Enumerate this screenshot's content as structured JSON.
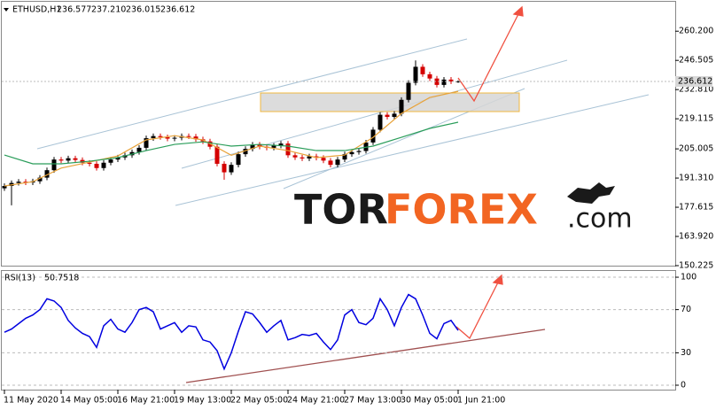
{
  "chart_data": [
    {
      "type": "candlestick",
      "quote": {
        "symbol": "ETHUSD,H1",
        "values": [
          236.577,
          237.21,
          236.015,
          236.612
        ],
        "value_labels": [
          "236.577",
          "237.210",
          "236.015",
          "236.612"
        ]
      },
      "up_color": "#000000",
      "down_color": "#d40000",
      "open": [
        186.5,
        187.6,
        189.0,
        189.6,
        189.2,
        189.8,
        191.5,
        195.0,
        200.0,
        199.5,
        200.6,
        199.8,
        198.5,
        198.0,
        196.0,
        198.5,
        200.0,
        201.0,
        202.0,
        203.5,
        205.5,
        210.0,
        211.0,
        210.5,
        209.8,
        210.2,
        211.0,
        210.8,
        209.5,
        208.5,
        206.0,
        198.0,
        194.0,
        197.5,
        202.5,
        205.0,
        207.0,
        206.0,
        205.5,
        206.5,
        207.5,
        202.0,
        201.0,
        200.5,
        201.5,
        200.8,
        199.5,
        197.5,
        200.0,
        202.5,
        203.5,
        204.0,
        208.0,
        214.0,
        221.0,
        220.0,
        221.5,
        228.0,
        236.0,
        243.5,
        240.0,
        238.0,
        235.0,
        237.5,
        236.577
      ],
      "high": [
        188.8,
        190.2,
        190.8,
        190.8,
        191.0,
        192.7,
        196.2,
        201.2,
        201.2,
        201.8,
        201.8,
        201.0,
        199.7,
        199.2,
        199.7,
        201.2,
        202.2,
        203.2,
        204.7,
        206.7,
        211.2,
        212.2,
        212.2,
        211.7,
        211.4,
        212.2,
        212.2,
        212.0,
        210.7,
        209.7,
        207.2,
        199.2,
        198.7,
        203.7,
        206.2,
        208.2,
        208.2,
        207.2,
        207.7,
        208.7,
        208.7,
        203.2,
        202.2,
        202.7,
        202.7,
        202.0,
        200.7,
        201.2,
        203.7,
        204.7,
        205.2,
        209.2,
        215.2,
        222.2,
        222.2,
        222.7,
        229.2,
        237.2,
        246.5,
        244.7,
        241.2,
        239.2,
        238.7,
        238.7,
        237.21
      ],
      "low": [
        185.3,
        178.5,
        187.8,
        188.0,
        188.0,
        188.6,
        190.3,
        193.8,
        198.3,
        198.3,
        198.6,
        197.3,
        196.8,
        194.8,
        194.8,
        197.3,
        198.8,
        199.8,
        200.8,
        202.3,
        204.3,
        208.8,
        209.3,
        208.6,
        208.6,
        209.0,
        209.6,
        208.3,
        207.3,
        204.8,
        196.8,
        190.5,
        192.8,
        196.3,
        201.3,
        203.8,
        204.8,
        204.3,
        204.3,
        205.3,
        200.8,
        199.8,
        199.3,
        199.3,
        199.6,
        198.3,
        196.3,
        196.3,
        198.8,
        201.3,
        202.3,
        202.8,
        206.8,
        212.8,
        218.8,
        218.8,
        220.3,
        226.8,
        234.8,
        238.8,
        236.8,
        233.8,
        233.8,
        235.4,
        236.015
      ],
      "close": [
        187.6,
        189.0,
        189.6,
        189.2,
        189.8,
        191.5,
        195.0,
        200.0,
        199.5,
        200.6,
        199.8,
        198.5,
        198.0,
        196.0,
        198.5,
        200.0,
        201.0,
        202.0,
        203.5,
        205.5,
        210.0,
        211.0,
        210.5,
        209.8,
        210.2,
        211.0,
        210.8,
        209.5,
        208.5,
        206.0,
        198.0,
        194.0,
        197.5,
        202.5,
        205.0,
        207.0,
        206.0,
        205.5,
        206.5,
        207.5,
        202.0,
        201.0,
        200.5,
        201.5,
        200.8,
        199.5,
        197.5,
        200.0,
        202.5,
        203.5,
        204.0,
        208.0,
        214.0,
        221.0,
        220.0,
        221.5,
        228.0,
        236.0,
        243.5,
        240.0,
        238.0,
        235.0,
        237.5,
        236.577,
        236.612
      ],
      "series": [
        {
          "color": "#e8a33a",
          "x": [
            0,
            4,
            8,
            12,
            16,
            20,
            24,
            28,
            32,
            36,
            40,
            44,
            48,
            52,
            56,
            60,
            64
          ],
          "values": [
            187.6,
            189.6,
            196.0,
            198.8,
            201.7,
            209.2,
            211.2,
            209.2,
            202.0,
            206.3,
            204.2,
            200.9,
            202.1,
            210.4,
            221.6,
            229.1,
            232.0
          ]
        },
        {
          "color": "#2a9d5a",
          "x": [
            0,
            4,
            8,
            12,
            16,
            20,
            24,
            28,
            32,
            36,
            40,
            44,
            48,
            52,
            56,
            60,
            64
          ],
          "values": [
            202.1,
            198.0,
            198.0,
            199.2,
            200.9,
            204.2,
            207.1,
            208.3,
            206.3,
            207.1,
            206.3,
            204.2,
            204.2,
            206.3,
            210.4,
            214.6,
            217.5
          ]
        }
      ],
      "ylim": [
        149.8,
        274.0
      ],
      "yticks": [
        {
          "value": 260.2,
          "label": "260.200"
        },
        {
          "value": 246.505,
          "label": "246.505"
        },
        {
          "value": 232.81,
          "label": "232.810"
        },
        {
          "value": 219.115,
          "label": "219.115"
        },
        {
          "value": 205.005,
          "label": "205.005"
        },
        {
          "value": 191.31,
          "label": "191.310"
        },
        {
          "value": 177.615,
          "label": "177.615"
        },
        {
          "value": 163.92,
          "label": "163.920"
        },
        {
          "value": 150.225,
          "label": "150.225"
        }
      ],
      "watermark": [
        "TOR",
        "FOREX",
        ".com"
      ]
    },
    {
      "type": "line",
      "title": "RSI(13)",
      "color": "#0000e0",
      "categories": [
        "11 May 2020",
        null,
        null,
        null,
        null,
        null,
        null,
        null,
        "14 May 05:00",
        null,
        null,
        null,
        null,
        null,
        null,
        null,
        "16 May 21:00",
        null,
        null,
        null,
        null,
        null,
        null,
        null,
        "19 May 13:00",
        null,
        null,
        null,
        null,
        null,
        null,
        null,
        "22 May 05:00",
        null,
        null,
        null,
        null,
        null,
        null,
        null,
        "24 May 21:00",
        null,
        null,
        null,
        null,
        null,
        null,
        null,
        "27 May 13:00",
        null,
        null,
        null,
        null,
        null,
        null,
        null,
        "30 May 05:00",
        null,
        null,
        null,
        null,
        null,
        null,
        null,
        "1 Jun 21:00"
      ],
      "values": [
        49,
        52,
        57,
        62,
        65,
        70,
        80,
        78,
        72,
        60,
        53,
        48,
        45,
        35,
        55,
        61,
        52,
        49,
        58,
        70,
        72,
        68,
        52,
        55,
        58,
        49,
        55,
        54,
        42,
        40,
        32,
        15,
        30,
        50,
        68,
        66,
        58,
        49,
        55,
        60,
        42,
        44,
        47,
        46,
        48,
        40,
        33,
        42,
        65,
        70,
        58,
        56,
        62,
        80,
        70,
        55,
        72,
        84,
        80,
        65,
        48,
        43,
        57,
        60,
        50.7518
      ],
      "ylim": [
        -4.1,
        106.6
      ],
      "yticks": [
        100,
        70,
        30,
        0
      ]
    }
  ]
}
